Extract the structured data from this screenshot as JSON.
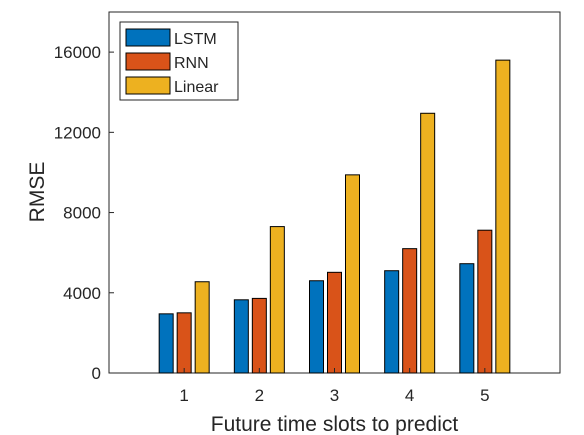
{
  "chart_data": {
    "type": "bar",
    "title": "",
    "xlabel": "Future time slots to predict",
    "ylabel": "RMSE",
    "categories": [
      "1",
      "2",
      "3",
      "4",
      "5"
    ],
    "series": [
      {
        "name": "LSTM",
        "color": "#0072BD",
        "values": [
          2950,
          3650,
          4600,
          5100,
          5450
        ]
      },
      {
        "name": "RNN",
        "color": "#D95319",
        "values": [
          3000,
          3720,
          5020,
          6200,
          7120
        ]
      },
      {
        "name": "Linear",
        "color": "#EDB120",
        "values": [
          4550,
          7300,
          9880,
          12950,
          15600
        ]
      }
    ],
    "ylim": [
      0,
      18000
    ],
    "yticks": [
      0,
      4000,
      8000,
      12000,
      16000
    ],
    "xlim": [
      0,
      6
    ],
    "grid": false,
    "legend_position": "top-left"
  }
}
